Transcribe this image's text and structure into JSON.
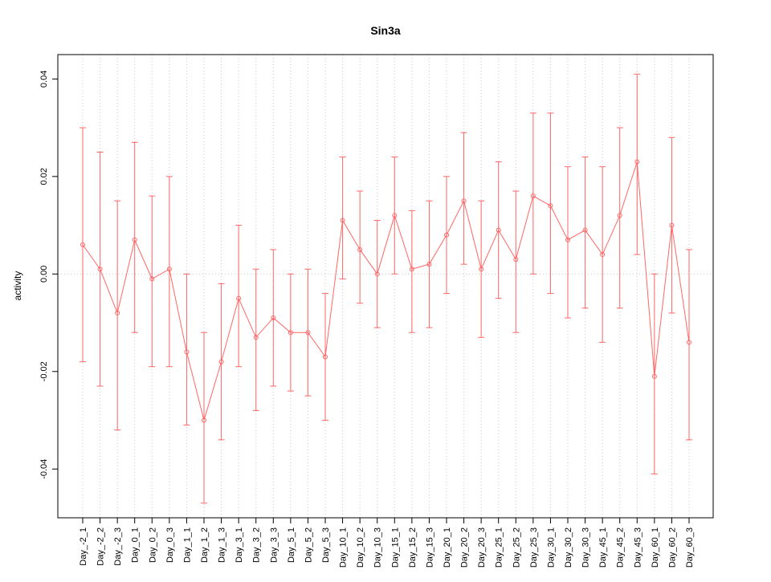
{
  "chart_data": {
    "type": "line",
    "title": "Sin3a",
    "xlabel": "",
    "ylabel": "activity",
    "ylim": [
      -0.05,
      0.045
    ],
    "yticks": [
      -0.04,
      -0.02,
      0,
      0.02,
      0.04
    ],
    "ytick_labels": [
      "-0.04",
      "-0.02",
      "0.00",
      "0.02",
      "0.04"
    ],
    "grid": "vertical-dotted-at-each-category-plus-dotted-zero-line",
    "legend_position": "none",
    "series_color": "#ff6666",
    "point_style": "open-circle",
    "error_bars": true,
    "categories": [
      "Day_-2_1",
      "Day_-2_2",
      "Day_-2_3",
      "Day_0_1",
      "Day_0_2",
      "Day_0_3",
      "Day_1_1",
      "Day_1_2",
      "Day_1_3",
      "Day_3_1",
      "Day_3_2",
      "Day_3_3",
      "Day_5_1",
      "Day_5_2",
      "Day_5_3",
      "Day_10_1",
      "Day_10_2",
      "Day_10_3",
      "Day_15_1",
      "Day_15_2",
      "Day_15_3",
      "Day_20_1",
      "Day_20_2",
      "Day_20_3",
      "Day_25_1",
      "Day_25_2",
      "Day_25_3",
      "Day_30_1",
      "Day_30_2",
      "Day_30_3",
      "Day_45_1",
      "Day_45_2",
      "Day_45_3",
      "Day_60_1",
      "Day_60_2",
      "Day_60_3"
    ],
    "values": [
      0.006,
      0.001,
      -0.008,
      0.007,
      -0.001,
      0.001,
      -0.016,
      -0.03,
      -0.018,
      -0.005,
      -0.013,
      -0.009,
      -0.012,
      -0.012,
      -0.017,
      0.011,
      0.005,
      0.0,
      0.012,
      0.001,
      0.002,
      0.008,
      0.015,
      0.001,
      0.009,
      0.003,
      0.016,
      0.014,
      0.007,
      0.009,
      0.004,
      0.012,
      0.023,
      -0.021,
      0.01,
      -0.014
    ],
    "upper": [
      0.03,
      0.025,
      0.015,
      0.027,
      0.016,
      0.02,
      0.0,
      -0.012,
      -0.002,
      0.01,
      0.001,
      0.005,
      0.0,
      0.001,
      -0.004,
      0.024,
      0.017,
      0.011,
      0.024,
      0.013,
      0.015,
      0.02,
      0.029,
      0.015,
      0.023,
      0.017,
      0.033,
      0.033,
      0.022,
      0.024,
      0.022,
      0.03,
      0.041,
      0.0,
      0.028,
      0.005
    ],
    "lower": [
      -0.018,
      -0.023,
      -0.032,
      -0.012,
      -0.019,
      -0.019,
      -0.031,
      -0.047,
      -0.034,
      -0.019,
      -0.028,
      -0.023,
      -0.024,
      -0.025,
      -0.03,
      -0.001,
      -0.006,
      -0.011,
      0.0,
      -0.012,
      -0.011,
      -0.004,
      0.002,
      -0.013,
      -0.005,
      -0.012,
      0.0,
      -0.004,
      -0.009,
      -0.007,
      -0.014,
      -0.007,
      0.004,
      -0.041,
      -0.008,
      -0.034
    ]
  }
}
